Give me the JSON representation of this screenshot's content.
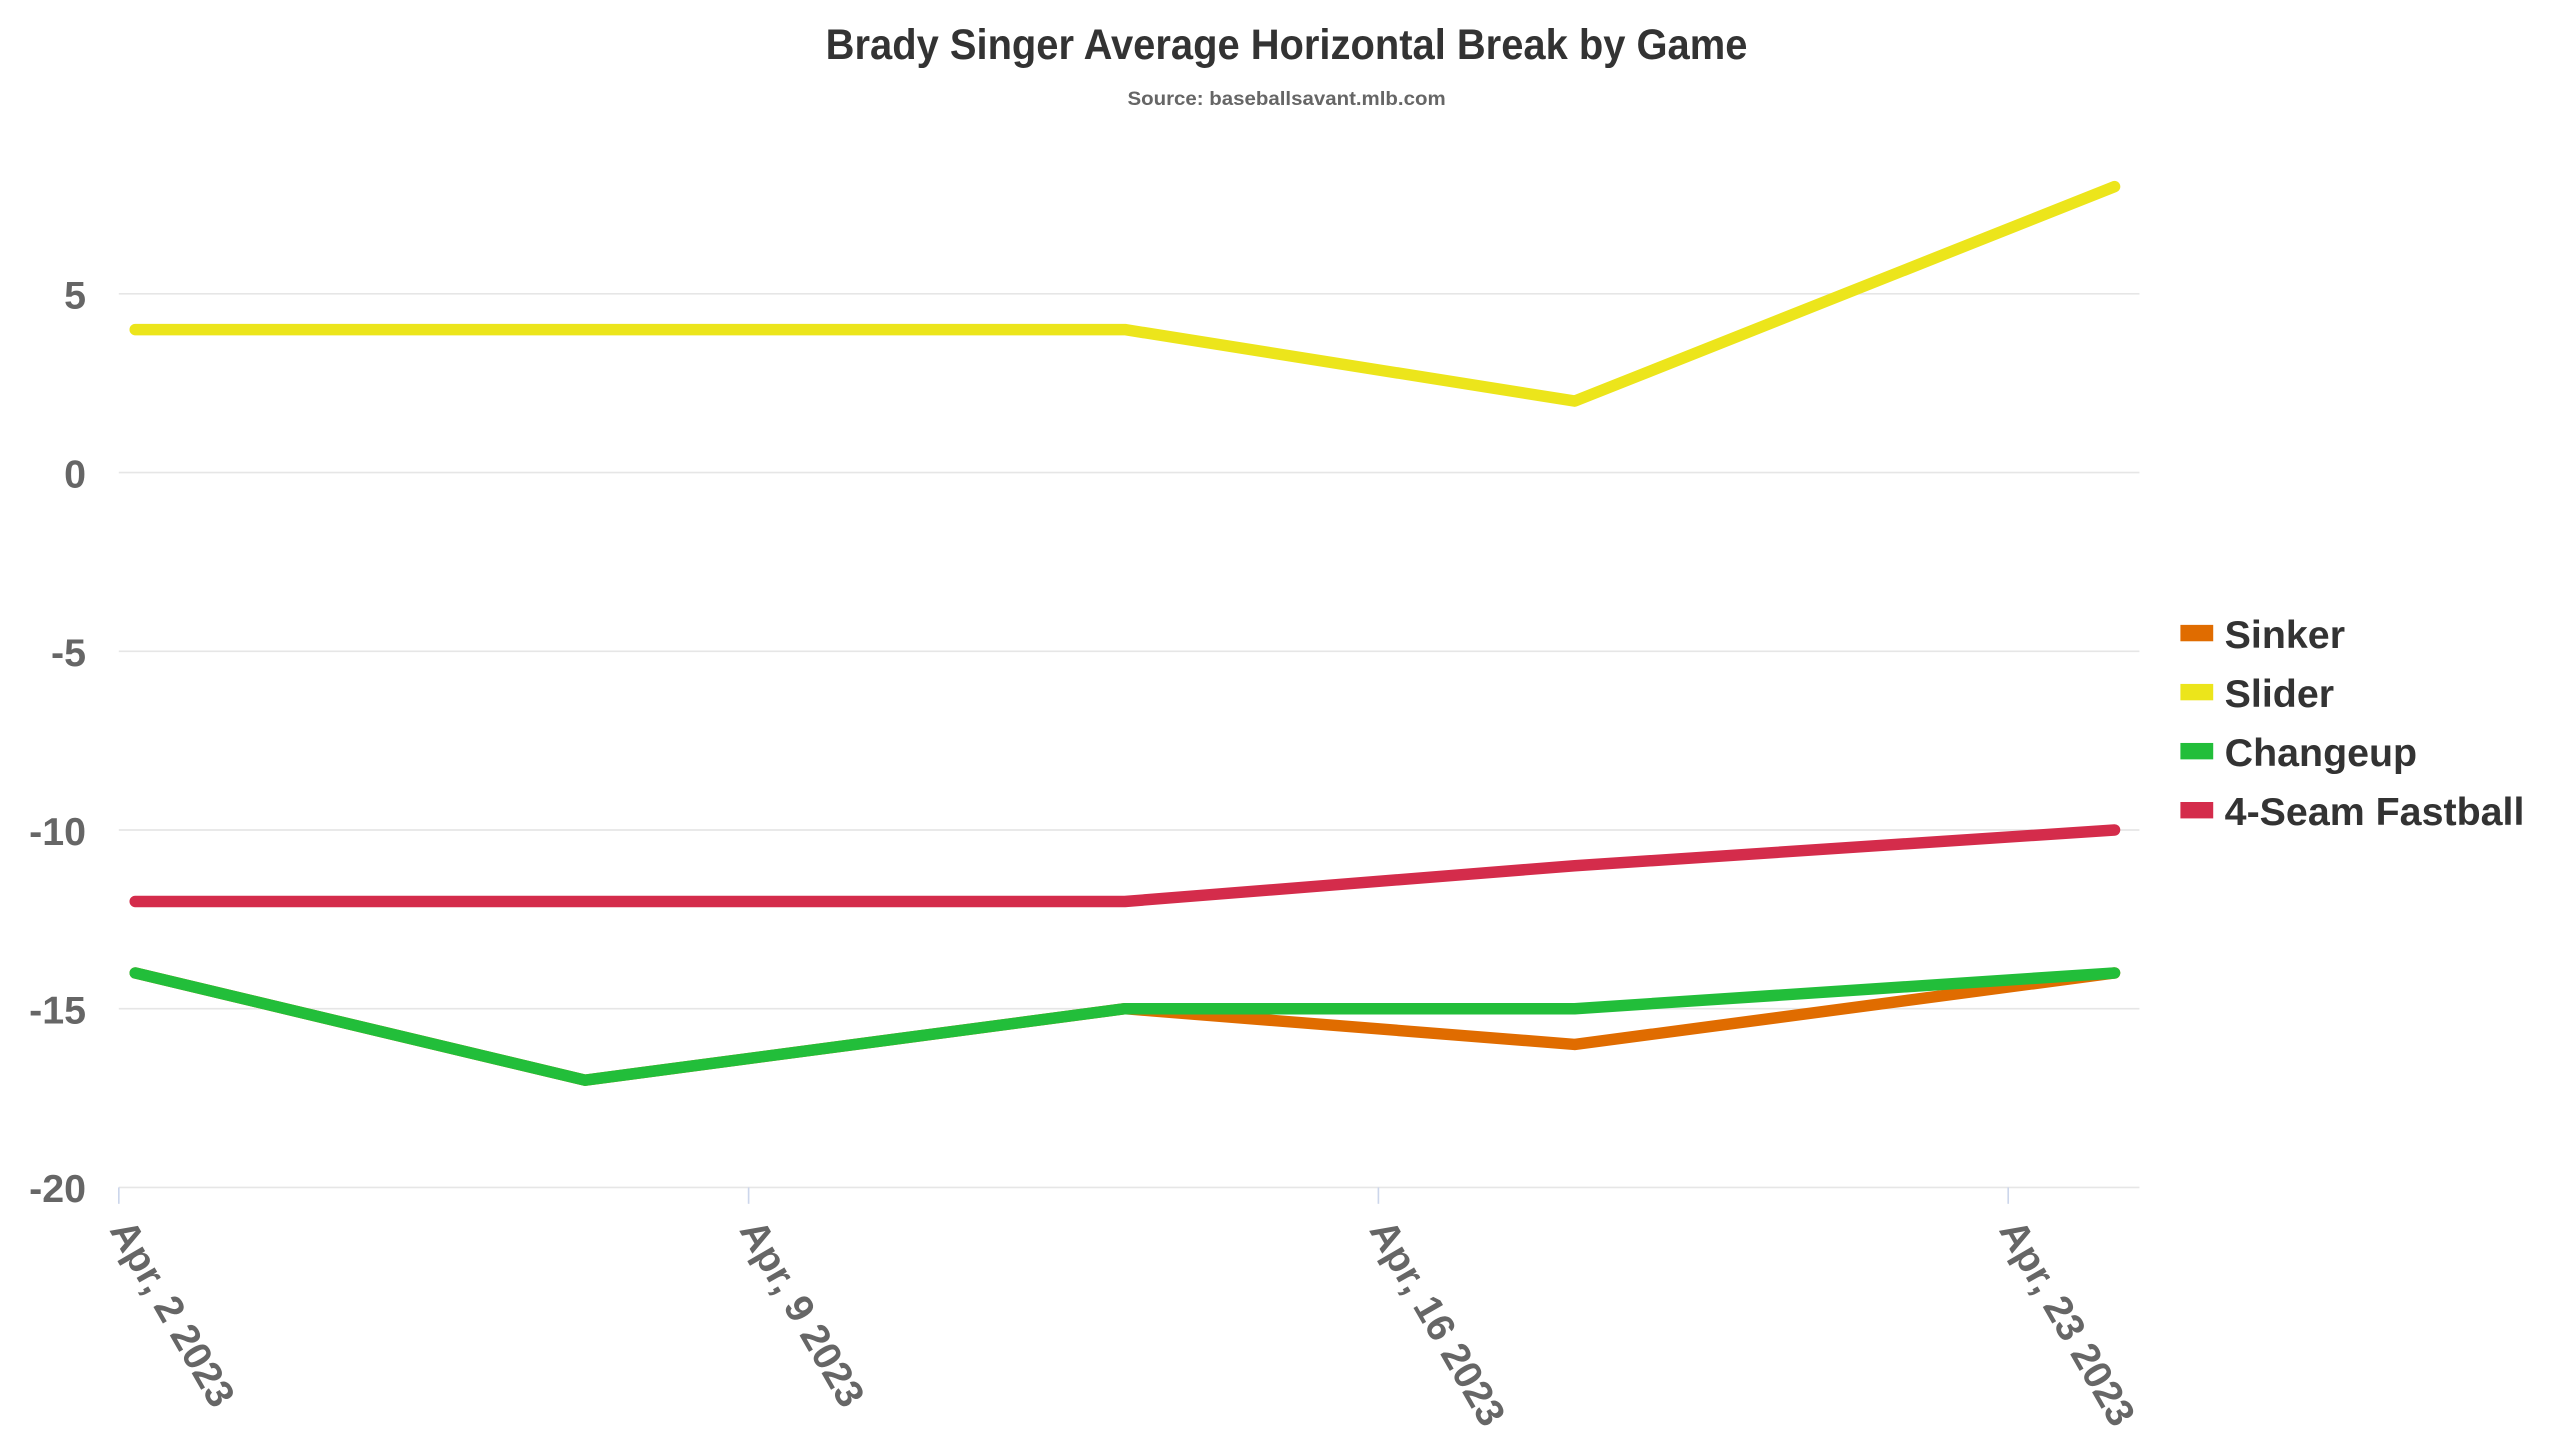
{
  "chart_data": {
    "type": "line",
    "title": "Brady Singer Average Horizontal Break by Game",
    "subtitle": "Source: baseballsavant.mlb.com",
    "xlabel": "",
    "ylabel": "",
    "x": [
      "2023-04-02",
      "2023-04-07",
      "2023-04-13",
      "2023-04-18",
      "2023-04-24"
    ],
    "x_ticks": [
      "Apr, 2 2023",
      "Apr, 9 2023",
      "Apr, 16 2023",
      "Apr, 23 2023"
    ],
    "x_tick_dates": [
      "2023-04-02",
      "2023-04-09",
      "2023-04-16",
      "2023-04-23"
    ],
    "ylim": [
      -20,
      9
    ],
    "y_ticks": [
      -20,
      -15,
      -10,
      -5,
      0,
      5
    ],
    "grid": true,
    "legend_position": "right",
    "series": [
      {
        "name": "Sinker",
        "color": "#e06c00",
        "values": [
          -14,
          -17,
          -15,
          -16,
          -14
        ]
      },
      {
        "name": "Slider",
        "color": "#ece51b",
        "values": [
          4,
          4,
          4,
          2,
          8
        ]
      },
      {
        "name": "Changeup",
        "color": "#22be3a",
        "values": [
          -14,
          -17,
          -15,
          -15,
          -14
        ]
      },
      {
        "name": "4-Seam Fastball",
        "color": "#d42c4b",
        "values": [
          -12,
          -12,
          -12,
          -11,
          -10
        ]
      }
    ]
  }
}
